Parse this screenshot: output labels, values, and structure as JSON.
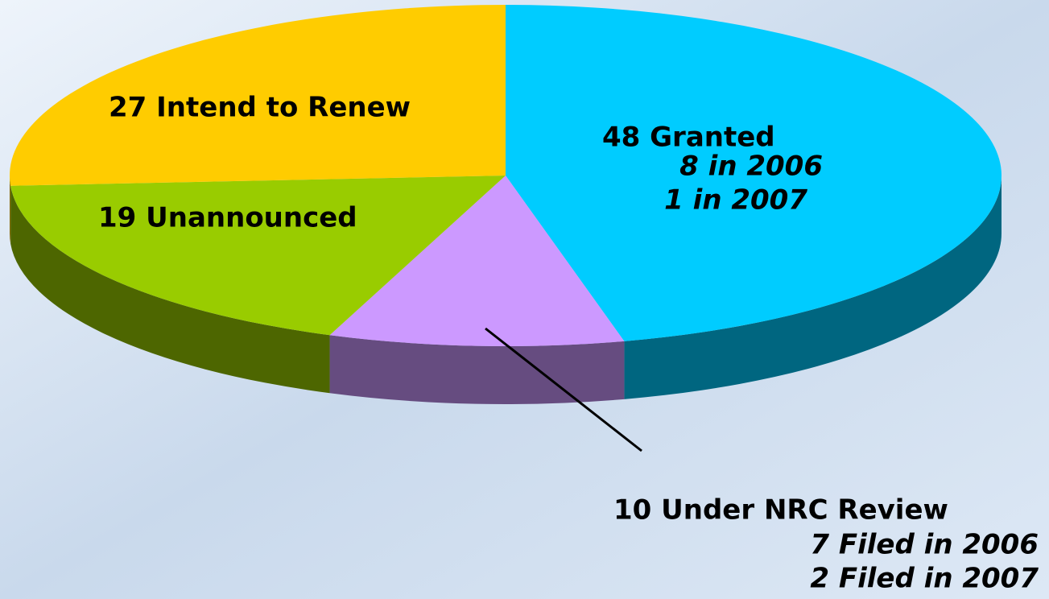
{
  "chart_data": {
    "type": "pie",
    "values": [
      48,
      10,
      19,
      27
    ],
    "value_labels": [
      "48 Granted",
      "10 Under NRC Review",
      "19 Unannounced",
      "27 Intend to Renew"
    ],
    "details": [
      [
        "8 in 2006",
        "1 in 2007"
      ],
      [
        "7 Filed in 2006",
        "2 Filed in 2007"
      ],
      [],
      []
    ],
    "colors": [
      "#00ccff",
      "#cc99ff",
      "#99cc00",
      "#ffcc00"
    ],
    "side_colors": [
      "#006680",
      "#664c80",
      "#4d6600",
      "#806600"
    ]
  }
}
